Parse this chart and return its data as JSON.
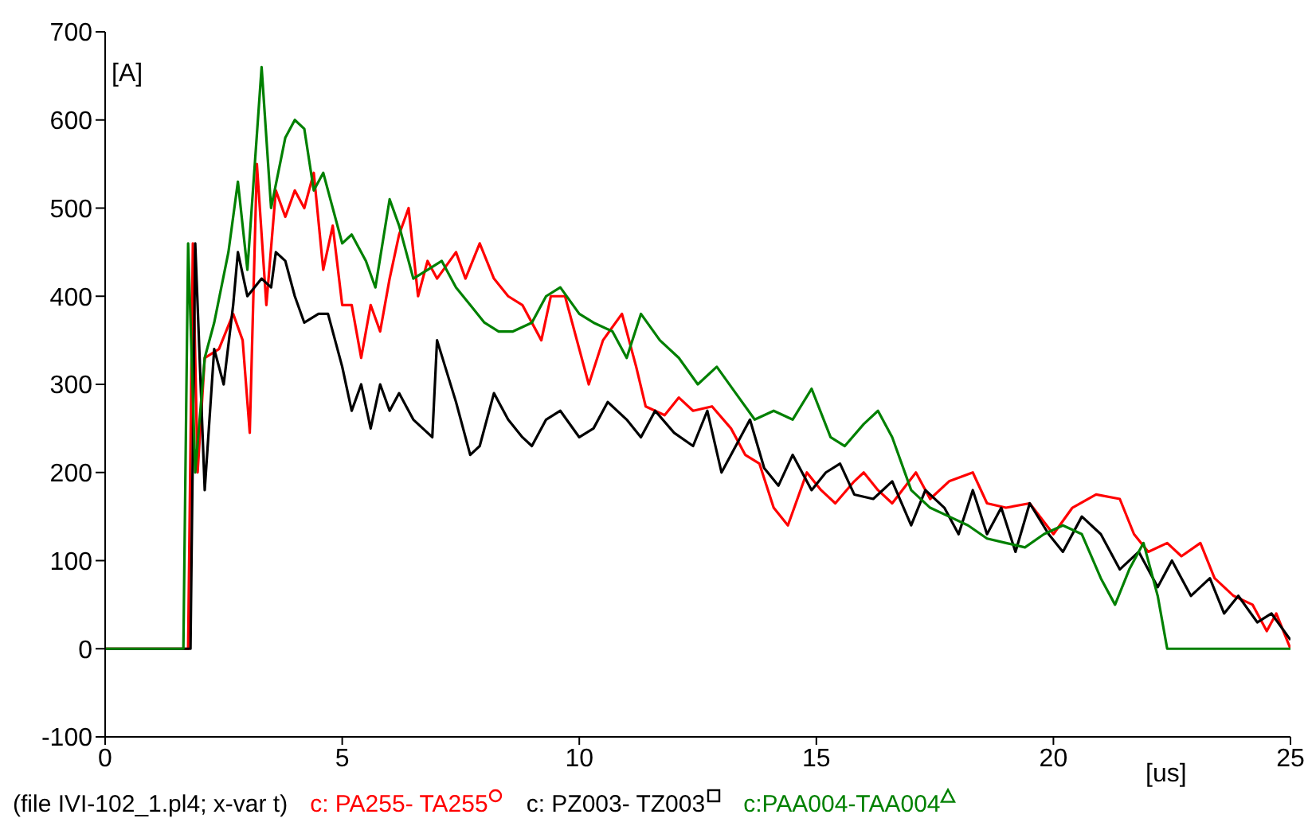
{
  "chart_data": {
    "type": "line",
    "xlabel": "[us]",
    "ylabel": "[A]",
    "annotations": [
      "(file IVI-102_1.pl4; x-var t)"
    ],
    "xlim": [
      0,
      25
    ],
    "xticks": [
      0,
      5,
      10,
      15,
      20,
      25
    ],
    "ylim": [
      -100,
      700
    ],
    "yticks": [
      -100,
      0,
      100,
      200,
      300,
      400,
      500,
      600,
      700
    ],
    "legend": "bottom",
    "line_style": "solid",
    "series": [
      {
        "name": "c: PA255- TA255",
        "color": "#ff0000",
        "x": [
          0,
          1.75,
          1.85,
          1.95,
          2.1,
          2.4,
          2.7,
          2.9,
          3.05,
          3.2,
          3.4,
          3.6,
          3.8,
          4.0,
          4.2,
          4.4,
          4.6,
          4.8,
          5.0,
          5.2,
          5.4,
          5.6,
          5.8,
          6.0,
          6.2,
          6.4,
          6.6,
          6.8,
          7.0,
          7.4,
          7.6,
          7.9,
          8.2,
          8.5,
          8.8,
          9.2,
          9.4,
          9.7,
          10.0,
          10.2,
          10.5,
          10.9,
          11.2,
          11.4,
          11.8,
          12.1,
          12.4,
          12.8,
          13.2,
          13.5,
          13.8,
          14.1,
          14.4,
          14.8,
          15.1,
          15.4,
          15.8,
          16.0,
          16.3,
          16.6,
          17.1,
          17.4,
          17.8,
          18.3,
          18.6,
          19.0,
          19.5,
          20.0,
          20.4,
          20.9,
          21.4,
          21.7,
          22.0,
          22.4,
          22.7,
          23.1,
          23.4,
          23.8,
          24.2,
          24.5,
          24.7,
          25
        ],
        "values": [
          0,
          0,
          460,
          200,
          330,
          340,
          380,
          350,
          245,
          550,
          390,
          520,
          490,
          520,
          500,
          540,
          430,
          480,
          390,
          390,
          330,
          390,
          360,
          420,
          470,
          500,
          400,
          440,
          420,
          450,
          420,
          460,
          420,
          400,
          390,
          350,
          400,
          400,
          340,
          300,
          350,
          380,
          320,
          275,
          265,
          285,
          270,
          275,
          250,
          220,
          210,
          160,
          140,
          200,
          180,
          165,
          190,
          200,
          180,
          165,
          200,
          170,
          190,
          200,
          165,
          160,
          165,
          130,
          160,
          175,
          170,
          130,
          110,
          120,
          105,
          120,
          80,
          60,
          50,
          20,
          40,
          0
        ]
      },
      {
        "name": "c: PZ003- TZ003",
        "color": "#000000",
        "x": [
          0,
          1.8,
          1.9,
          2.1,
          2.3,
          2.5,
          2.7,
          2.8,
          3.0,
          3.3,
          3.5,
          3.6,
          3.8,
          4.0,
          4.2,
          4.5,
          4.7,
          5.0,
          5.2,
          5.4,
          5.6,
          5.8,
          6.0,
          6.2,
          6.5,
          6.9,
          7.0,
          7.4,
          7.7,
          7.9,
          8.2,
          8.5,
          8.8,
          9.0,
          9.3,
          9.6,
          10.0,
          10.3,
          10.6,
          11.0,
          11.3,
          11.6,
          12.0,
          12.4,
          12.7,
          13.0,
          13.3,
          13.6,
          13.9,
          14.2,
          14.5,
          14.9,
          15.2,
          15.5,
          15.8,
          16.2,
          16.6,
          17.0,
          17.3,
          17.7,
          18.0,
          18.3,
          18.6,
          18.9,
          19.2,
          19.5,
          19.9,
          20.2,
          20.6,
          21.0,
          21.4,
          21.8,
          22.2,
          22.5,
          22.9,
          23.3,
          23.6,
          23.9,
          24.3,
          24.6,
          25
        ],
        "values": [
          0,
          0,
          460,
          180,
          340,
          300,
          390,
          450,
          400,
          420,
          410,
          450,
          440,
          400,
          370,
          380,
          380,
          320,
          270,
          300,
          250,
          300,
          270,
          290,
          260,
          240,
          350,
          280,
          220,
          230,
          290,
          260,
          240,
          230,
          260,
          270,
          240,
          250,
          280,
          260,
          240,
          270,
          245,
          230,
          270,
          200,
          230,
          260,
          205,
          185,
          220,
          180,
          200,
          210,
          175,
          170,
          190,
          140,
          180,
          160,
          130,
          180,
          130,
          160,
          110,
          165,
          130,
          110,
          150,
          130,
          90,
          110,
          70,
          100,
          60,
          80,
          40,
          60,
          30,
          40,
          10
        ]
      },
      {
        "name": "c:PAA004-TAA004",
        "color": "#008000",
        "x": [
          0,
          1.65,
          1.75,
          1.9,
          2.1,
          2.3,
          2.6,
          2.8,
          3.0,
          3.3,
          3.5,
          3.8,
          4.0,
          4.2,
          4.4,
          4.6,
          4.8,
          5.0,
          5.2,
          5.5,
          5.7,
          6.0,
          6.2,
          6.5,
          6.8,
          7.1,
          7.4,
          7.7,
          8.0,
          8.3,
          8.6,
          9.0,
          9.3,
          9.6,
          10.0,
          10.3,
          10.7,
          11.0,
          11.3,
          11.7,
          12.1,
          12.5,
          12.9,
          13.3,
          13.7,
          14.1,
          14.5,
          14.9,
          15.3,
          15.6,
          16.0,
          16.3,
          16.6,
          17.0,
          17.4,
          17.8,
          18.2,
          18.6,
          19.0,
          19.4,
          19.8,
          20.2,
          20.6,
          21.0,
          21.3,
          21.6,
          21.9,
          22.2,
          22.4,
          25
        ],
        "values": [
          0,
          0,
          460,
          200,
          330,
          370,
          450,
          530,
          430,
          660,
          500,
          580,
          600,
          590,
          520,
          540,
          500,
          460,
          470,
          440,
          410,
          510,
          480,
          420,
          430,
          440,
          410,
          390,
          370,
          360,
          360,
          370,
          400,
          410,
          380,
          370,
          360,
          330,
          380,
          350,
          330,
          300,
          320,
          290,
          260,
          270,
          260,
          295,
          240,
          230,
          255,
          270,
          240,
          180,
          160,
          150,
          140,
          125,
          120,
          115,
          130,
          140,
          130,
          80,
          50,
          90,
          120,
          60,
          0,
          0
        ]
      }
    ]
  }
}
